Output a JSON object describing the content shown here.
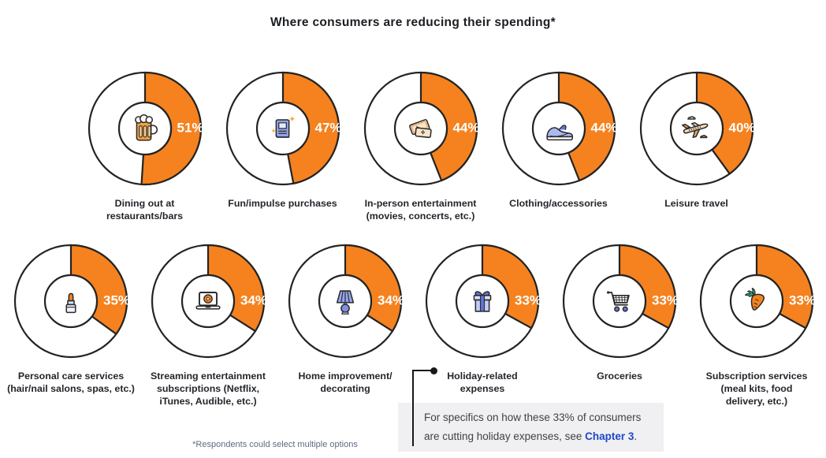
{
  "title": "Where consumers are reducing their spending*",
  "footnote": "*Respondents could select multiple options",
  "callout": {
    "line1": "For specifics on how these 33% of consumers",
    "line2_prefix": "are cutting holiday expenses, see ",
    "link_text": "Chapter 3",
    "suffix": "."
  },
  "colors": {
    "accent_orange": "#F5821F",
    "outline_dark": "#232323",
    "title_text": "#1A1D21",
    "label_text": "#23262B",
    "percent_text": "#FFFFFF",
    "footnote_text": "#5D6C80",
    "callout_bg": "#F0F0F2",
    "link_blue": "#2047C8"
  },
  "chart_data": {
    "type": "pie",
    "variant": "donut-grid",
    "title": "Where consumers are reducing their spending*",
    "unit": "%",
    "value_range": [
      0,
      100
    ],
    "start_angle": "12-o-clock-clockwise",
    "legend": "none",
    "items": [
      {
        "slug": "dining-out",
        "label": "Dining out at\nrestaurants/bars",
        "value": 51,
        "icon": "beer-mug-icon",
        "row": 1
      },
      {
        "slug": "fun-impulse-purchases",
        "label": "Fun/impulse purchases",
        "value": 47,
        "icon": "book-icon",
        "row": 1
      },
      {
        "slug": "in-person-entertainment",
        "label": "In-person entertainment\n(movies, concerts, etc.)",
        "value": 44,
        "icon": "tickets-icon",
        "row": 1
      },
      {
        "slug": "clothing-accessories",
        "label": "Clothing/accessories",
        "value": 44,
        "icon": "sneaker-icon",
        "row": 1
      },
      {
        "slug": "leisure-travel",
        "label": "Leisure travel",
        "value": 40,
        "icon": "airplane-icon",
        "row": 1
      },
      {
        "slug": "personal-care-services",
        "label": "Personal care services\n(hair/nail salons, spas, etc.)",
        "value": 35,
        "icon": "lipstick-icon",
        "row": 2
      },
      {
        "slug": "streaming-subscriptions",
        "label": "Streaming entertainment\nsubscriptions (Netflix,\niTunes, Audible, etc.)",
        "value": 34,
        "icon": "streaming-laptop-icon",
        "row": 2
      },
      {
        "slug": "home-improvement",
        "label": "Home improvement/\ndecorating",
        "value": 34,
        "icon": "gift-lamp-icon",
        "row": 2
      },
      {
        "slug": "holiday-expenses",
        "label": "Holiday-related\nexpenses",
        "value": 33,
        "icon": "gift-icon",
        "row": 2,
        "connector": true
      },
      {
        "slug": "groceries",
        "label": "Groceries",
        "value": 33,
        "icon": "shopping-cart-icon",
        "row": 2
      },
      {
        "slug": "subscription-services",
        "label": "Subscription services\n(meal kits, food\ndelivery, etc.)",
        "value": 33,
        "icon": "carrot-icon",
        "row": 2
      }
    ]
  }
}
